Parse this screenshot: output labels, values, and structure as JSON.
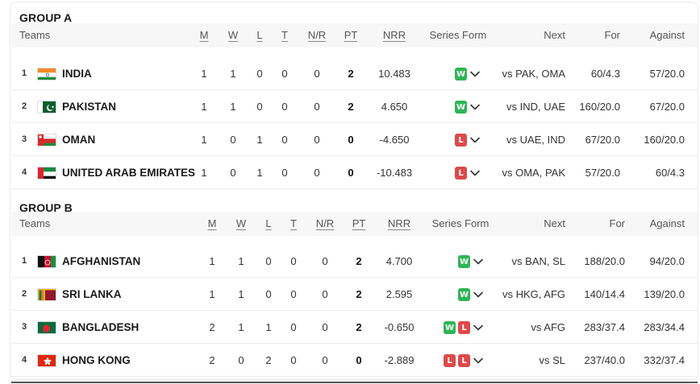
{
  "colors": {
    "win": "#2fb456",
    "loss": "#dd4a4a",
    "header_bg": "#f7f7f7"
  },
  "columns": {
    "teams": "Teams",
    "m": "M",
    "w": "W",
    "l": "L",
    "t": "T",
    "nr": "N/R",
    "pt": "PT",
    "nrr": "NRR",
    "form": "Series Form",
    "next": "Next",
    "for": "For",
    "against": "Against"
  },
  "groups": [
    {
      "title": "GROUP A",
      "rows": [
        {
          "pos": "1",
          "flag": "india-flag",
          "team": "INDIA",
          "m": "1",
          "w": "1",
          "l": "0",
          "t": "0",
          "nr": "0",
          "pt": "2",
          "nrr": "10.483",
          "form": [
            "W"
          ],
          "next": "vs PAK, OMA",
          "for": "60/4.3",
          "against": "57/20.0"
        },
        {
          "pos": "2",
          "flag": "pakistan-flag",
          "team": "PAKISTAN",
          "m": "1",
          "w": "1",
          "l": "0",
          "t": "0",
          "nr": "0",
          "pt": "2",
          "nrr": "4.650",
          "form": [
            "W"
          ],
          "next": "vs IND, UAE",
          "for": "160/20.0",
          "against": "67/20.0"
        },
        {
          "pos": "3",
          "flag": "oman-flag",
          "team": "OMAN",
          "m": "1",
          "w": "0",
          "l": "1",
          "t": "0",
          "nr": "0",
          "pt": "0",
          "nrr": "-4.650",
          "form": [
            "L"
          ],
          "next": "vs UAE, IND",
          "for": "67/20.0",
          "against": "160/20.0"
        },
        {
          "pos": "4",
          "flag": "uae-flag",
          "team": "UNITED ARAB EMIRATES",
          "m": "1",
          "w": "0",
          "l": "1",
          "t": "0",
          "nr": "0",
          "pt": "0",
          "nrr": "-10.483",
          "form": [
            "L"
          ],
          "next": "vs OMA, PAK",
          "for": "57/20.0",
          "against": "60/4.3"
        }
      ]
    },
    {
      "title": "GROUP B",
      "rows": [
        {
          "pos": "1",
          "flag": "afghanistan-flag",
          "team": "AFGHANISTAN",
          "m": "1",
          "w": "1",
          "l": "0",
          "t": "0",
          "nr": "0",
          "pt": "2",
          "nrr": "4.700",
          "form": [
            "W"
          ],
          "next": "vs BAN, SL",
          "for": "188/20.0",
          "against": "94/20.0"
        },
        {
          "pos": "2",
          "flag": "sri-lanka-flag",
          "team": "SRI LANKA",
          "m": "1",
          "w": "1",
          "l": "0",
          "t": "0",
          "nr": "0",
          "pt": "2",
          "nrr": "2.595",
          "form": [
            "W"
          ],
          "next": "vs HKG, AFG",
          "for": "140/14.4",
          "against": "139/20.0"
        },
        {
          "pos": "3",
          "flag": "bangladesh-flag",
          "team": "BANGLADESH",
          "m": "2",
          "w": "1",
          "l": "1",
          "t": "0",
          "nr": "0",
          "pt": "2",
          "nrr": "-0.650",
          "form": [
            "W",
            "L"
          ],
          "next": "vs AFG",
          "for": "283/37.4",
          "against": "283/34.4"
        },
        {
          "pos": "4",
          "flag": "hong-kong-flag",
          "team": "HONG KONG",
          "m": "2",
          "w": "0",
          "l": "2",
          "t": "0",
          "nr": "0",
          "pt": "0",
          "nrr": "-2.889",
          "form": [
            "L",
            "L"
          ],
          "next": "vs SL",
          "for": "237/40.0",
          "against": "332/37.4"
        }
      ]
    }
  ]
}
